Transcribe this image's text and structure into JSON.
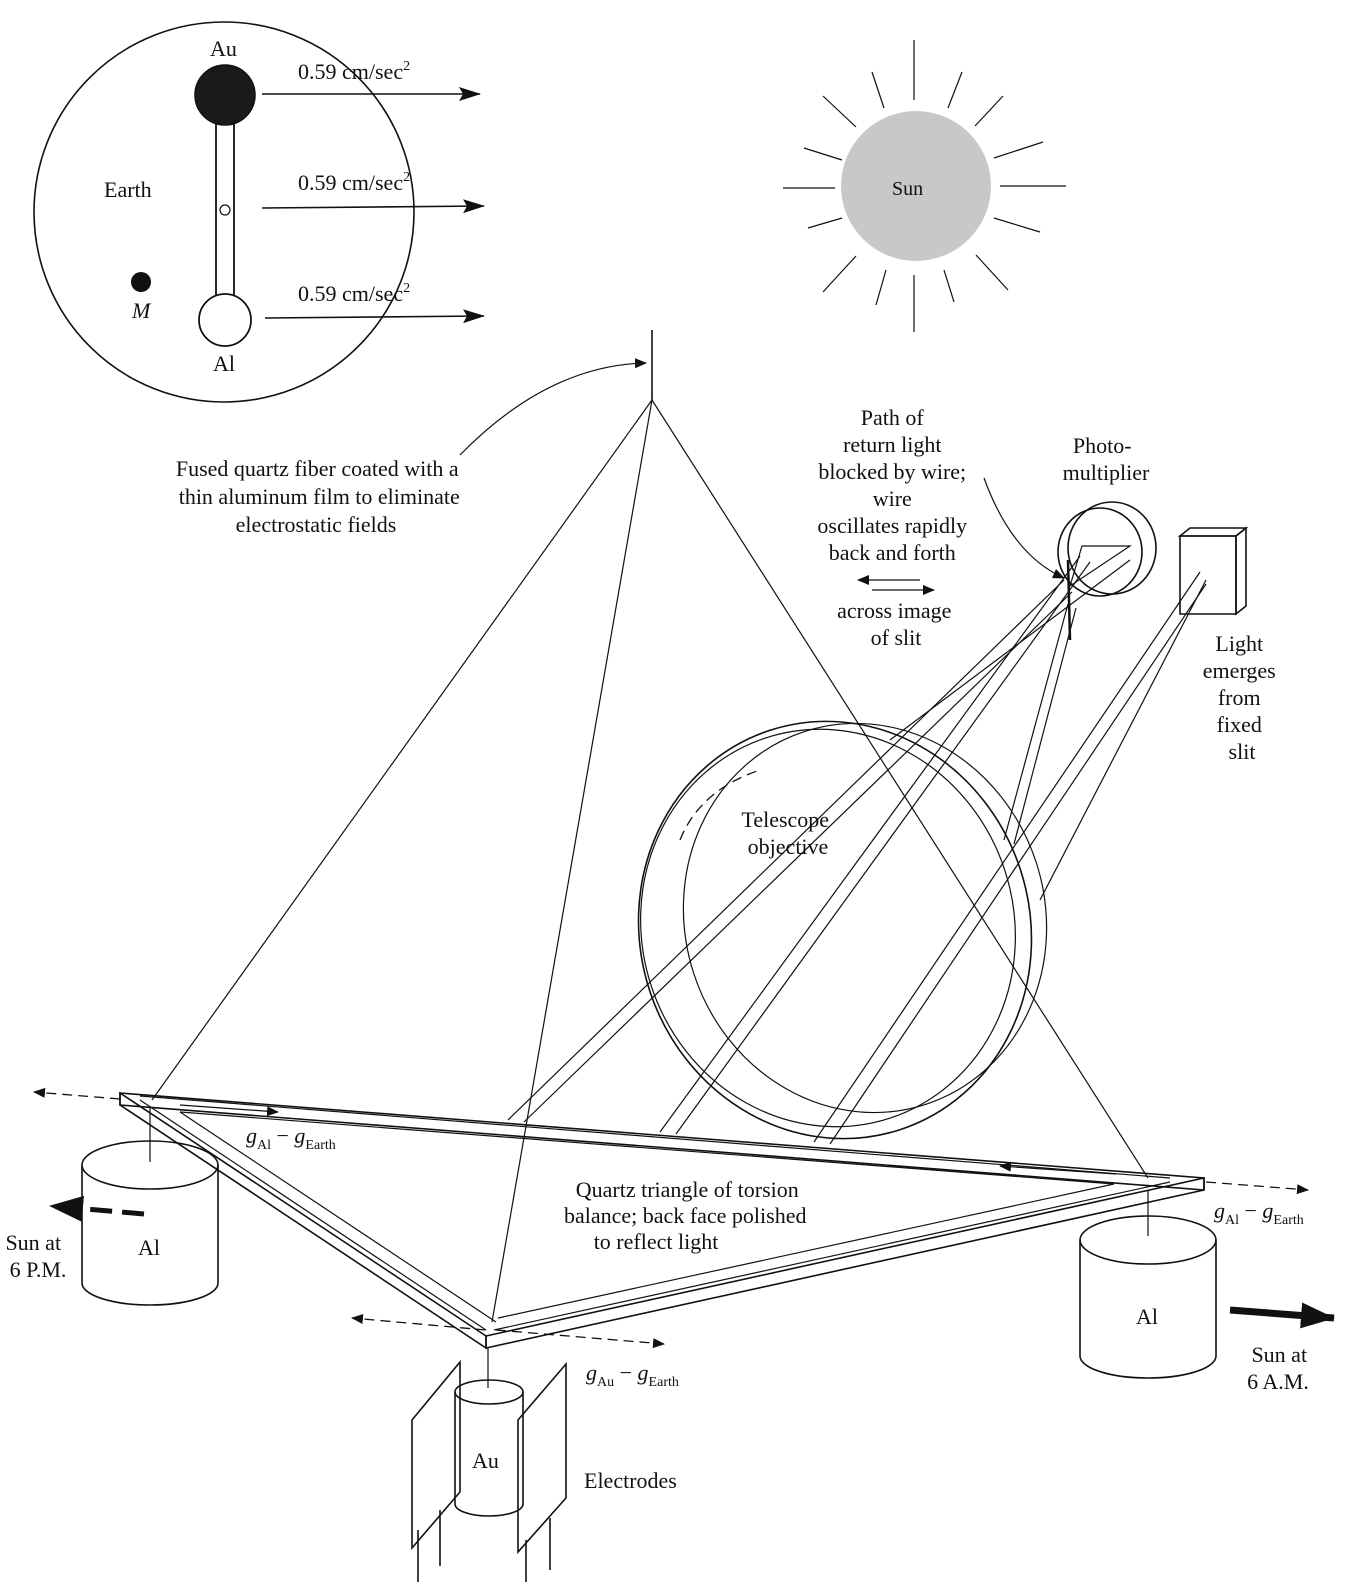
{
  "inset": {
    "earth_label": "Earth",
    "mass_label": "M",
    "top_mass": "Au",
    "bottom_mass": "Al",
    "accel_1": "0.59 cm/sec",
    "accel_2": "0.59 cm/sec",
    "accel_3": "0.59 cm/sec",
    "accel_sup": "2"
  },
  "sun": {
    "label": "Sun",
    "fill": "#c8c8c8"
  },
  "fiber": {
    "line1": "Fused quartz fiber coated with a",
    "line2": "thin aluminum film to eliminate",
    "line3": "electrostatic fields"
  },
  "return_path": {
    "line1": "Path of",
    "line2": "return light",
    "line3": "blocked by wire;",
    "line4": "wire",
    "line5": "oscillates rapidly",
    "line6": "back and forth",
    "line7": "across image",
    "line8": "of slit"
  },
  "photomultiplier": {
    "line1": "Photo-",
    "line2": "multiplier"
  },
  "slit": {
    "line1": "Light",
    "line2": "emerges",
    "line3": "from",
    "line4": "fixed",
    "line5": "slit"
  },
  "telescope": {
    "line1": "Telescope",
    "line2": "objective"
  },
  "triangle": {
    "line1": "Quartz triangle of torsion",
    "line2": "balance; back face polished",
    "line3": "to reflect light"
  },
  "forces": {
    "g": "g",
    "al_sub": "Al",
    "au_sub": "Au",
    "earth_sub": "Earth",
    "minus": " − "
  },
  "masses": {
    "left": "Al",
    "right": "Al",
    "front": "Au"
  },
  "electrodes": "Electrodes",
  "sun_pm": {
    "line1": "Sun at",
    "line2": "6 P.M."
  },
  "sun_am": {
    "line1": "Sun at",
    "line2": "6 A.M."
  }
}
